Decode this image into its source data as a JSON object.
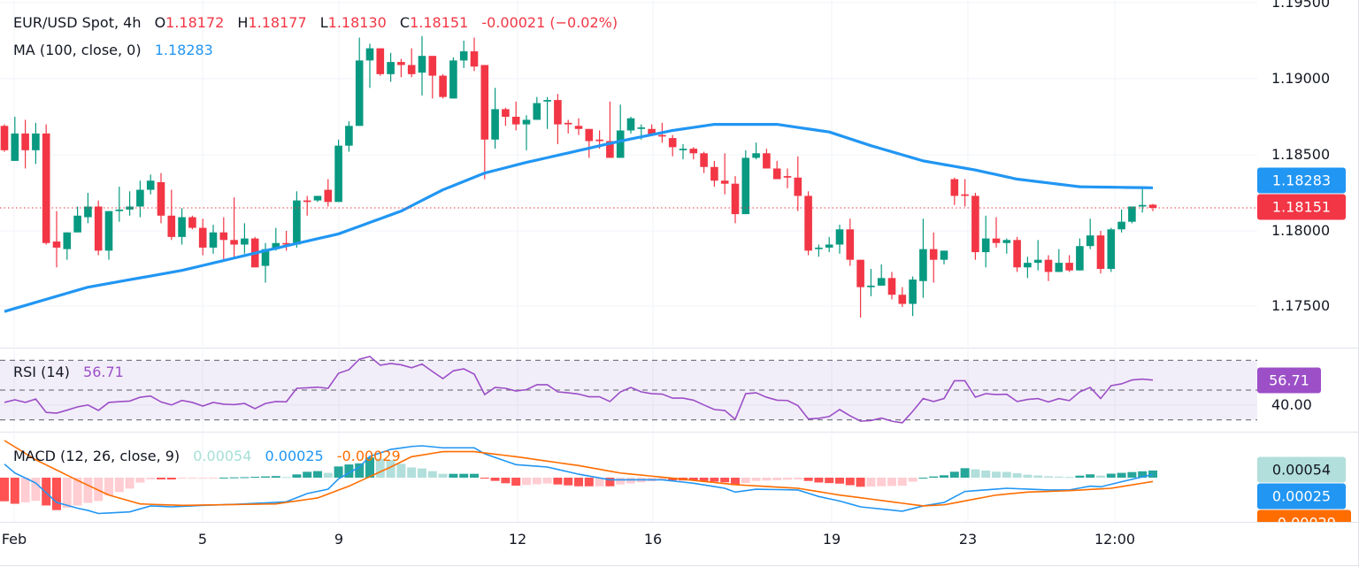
{
  "header": {
    "symbol": "EUR/USD Spot, 4h",
    "o_label": "O",
    "o_value": "1.18172",
    "h_label": "H",
    "h_value": "1.18177",
    "l_label": "L",
    "l_value": "1.18130",
    "c_label": "C",
    "c_value": "1.18151",
    "change": "-0.00021 (−0.02%)"
  },
  "ma_legend": {
    "label": "MA (100, close, 0)",
    "value": "1.18283"
  },
  "rsi_legend": {
    "label": "RSI (14)",
    "value": "56.71"
  },
  "macd_legend": {
    "label": "MACD (12, 26, close, 9)",
    "hist": "0.00054",
    "macd": "0.00025",
    "signal": "-0.00029"
  },
  "price_axis": [
    "1.19500",
    "1.19000",
    "1.18500",
    "1.18000",
    "1.17500"
  ],
  "price_badges": {
    "ma": "1.18283",
    "last": "1.18151"
  },
  "rsi_axis": {
    "badge": "56.71",
    "level_label": "40.00"
  },
  "macd_badges": {
    "hist": "0.00054",
    "macd": "0.00025",
    "signal": "-0.00029"
  },
  "time_axis": [
    "Feb",
    "5",
    "9",
    "12",
    "16",
    "19",
    "23",
    "12:00"
  ],
  "colors": {
    "up": "#089981",
    "down": "#f23645",
    "ma": "#2196f3",
    "rsi": "#9c4fc7",
    "macd": "#2196f3",
    "signal": "#ff6d00",
    "hist_up_strong": "#26a69a",
    "hist_up_weak": "#b2dfdb",
    "hist_down_strong": "#ff5252",
    "hist_down_weak": "#ffcdd2"
  },
  "chart_data": [
    {
      "type": "candlestick",
      "title": "EUR/USD Spot, 4h",
      "ylim": [
        1.1725,
        1.1952
      ],
      "grid": true,
      "ohlc": [
        [
          1.1869,
          1.187,
          1.1852,
          1.1853
        ],
        [
          1.1846,
          1.1875,
          1.1846,
          1.1864
        ],
        [
          1.1864,
          1.1873,
          1.1841,
          1.1853
        ],
        [
          1.1853,
          1.1871,
          1.1844,
          1.1864
        ],
        [
          1.1864,
          1.187,
          1.1791,
          1.1792
        ],
        [
          1.1793,
          1.1813,
          1.1776,
          1.1789
        ],
        [
          1.1788,
          1.1799,
          1.1781,
          1.1799
        ],
        [
          1.1799,
          1.1816,
          1.1799,
          1.181
        ],
        [
          1.1809,
          1.1825,
          1.1805,
          1.1816
        ],
        [
          1.1816,
          1.182,
          1.1784,
          1.1787
        ],
        [
          1.1787,
          1.1813,
          1.1781,
          1.1813
        ],
        [
          1.1813,
          1.1829,
          1.1806,
          1.1814
        ],
        [
          1.1814,
          1.1826,
          1.181,
          1.1816
        ],
        [
          1.1816,
          1.1833,
          1.1809,
          1.1827
        ],
        [
          1.1827,
          1.1837,
          1.1824,
          1.1833
        ],
        [
          1.1832,
          1.1838,
          1.1805,
          1.181
        ],
        [
          1.181,
          1.1827,
          1.1794,
          1.1796
        ],
        [
          1.1796,
          1.1815,
          1.1791,
          1.1809
        ],
        [
          1.1809,
          1.181,
          1.1801,
          1.1802
        ],
        [
          1.1802,
          1.1808,
          1.1784,
          1.1789
        ],
        [
          1.1789,
          1.1804,
          1.1785,
          1.1799
        ],
        [
          1.1799,
          1.1809,
          1.1781,
          1.1794
        ],
        [
          1.1794,
          1.1822,
          1.1782,
          1.1791
        ],
        [
          1.1791,
          1.1805,
          1.1785,
          1.1795
        ],
        [
          1.1795,
          1.1796,
          1.1776,
          1.1776
        ],
        [
          1.1777,
          1.1792,
          1.1766,
          1.1788
        ],
        [
          1.1788,
          1.1802,
          1.1787,
          1.1792
        ],
        [
          1.1792,
          1.18,
          1.1787,
          1.1791
        ],
        [
          1.1791,
          1.1826,
          1.1789,
          1.182
        ],
        [
          1.182,
          1.1823,
          1.181,
          1.1819
        ],
        [
          1.182,
          1.1823,
          1.1819,
          1.1823
        ],
        [
          1.1827,
          1.1834,
          1.1816,
          1.1819
        ],
        [
          1.1819,
          1.186,
          1.1819,
          1.1856
        ],
        [
          1.1856,
          1.1872,
          1.1852,
          1.1869
        ],
        [
          1.1869,
          1.1927,
          1.1869,
          1.1912
        ],
        [
          1.1912,
          1.1923,
          1.1894,
          1.192
        ],
        [
          1.192,
          1.192,
          1.1902,
          1.1903
        ],
        [
          1.1903,
          1.1917,
          1.1898,
          1.1911
        ],
        [
          1.1911,
          1.1913,
          1.1901,
          1.1909
        ],
        [
          1.1909,
          1.192,
          1.1901,
          1.1903
        ],
        [
          1.1904,
          1.1928,
          1.1889,
          1.1915
        ],
        [
          1.1915,
          1.1915,
          1.1887,
          1.1902
        ],
        [
          1.1902,
          1.1903,
          1.1887,
          1.1888
        ],
        [
          1.1887,
          1.1914,
          1.1887,
          1.1912
        ],
        [
          1.1912,
          1.1925,
          1.1907,
          1.1918
        ],
        [
          1.1918,
          1.1927,
          1.1905,
          1.1908
        ],
        [
          1.1909,
          1.1909,
          1.1834,
          1.186
        ],
        [
          1.186,
          1.1894,
          1.1854,
          1.188
        ],
        [
          1.188,
          1.1881,
          1.1869,
          1.1875
        ],
        [
          1.1875,
          1.1885,
          1.1866,
          1.187
        ],
        [
          1.187,
          1.1876,
          1.1853,
          1.1873
        ],
        [
          1.1873,
          1.1888,
          1.1873,
          1.1884
        ],
        [
          1.1885,
          1.1888,
          1.1867,
          1.1886
        ],
        [
          1.1886,
          1.189,
          1.1857,
          1.187
        ],
        [
          1.1871,
          1.1873,
          1.1864,
          1.187
        ],
        [
          1.1869,
          1.1874,
          1.1863,
          1.1867
        ],
        [
          1.1867,
          1.1867,
          1.1848,
          1.1859
        ],
        [
          1.186,
          1.1866,
          1.1854,
          1.1859
        ],
        [
          1.1859,
          1.1885,
          1.1848,
          1.1848
        ],
        [
          1.1848,
          1.1883,
          1.1848,
          1.1866
        ],
        [
          1.1866,
          1.1875,
          1.1864,
          1.1874
        ],
        [
          1.1867,
          1.187,
          1.186,
          1.1868
        ],
        [
          1.1867,
          1.187,
          1.1863,
          1.1863
        ],
        [
          1.1863,
          1.1871,
          1.1858,
          1.1862
        ],
        [
          1.1861,
          1.1863,
          1.1849,
          1.1855
        ],
        [
          1.1853,
          1.1857,
          1.1847,
          1.1854
        ],
        [
          1.1854,
          1.1855,
          1.1847,
          1.1851
        ],
        [
          1.1851,
          1.1852,
          1.1838,
          1.1842
        ],
        [
          1.1842,
          1.1846,
          1.1829,
          1.1833
        ],
        [
          1.1833,
          1.1851,
          1.1824,
          1.1831
        ],
        [
          1.1831,
          1.1836,
          1.1805,
          1.1811
        ],
        [
          1.1811,
          1.1853,
          1.1811,
          1.1848
        ],
        [
          1.1848,
          1.1858,
          1.1847,
          1.1851
        ],
        [
          1.1851,
          1.1854,
          1.1841,
          1.1841
        ],
        [
          1.1841,
          1.1846,
          1.1834,
          1.1834
        ],
        [
          1.1836,
          1.1841,
          1.1828,
          1.1835
        ],
        [
          1.1835,
          1.1849,
          1.1813,
          1.1823
        ],
        [
          1.1823,
          1.1826,
          1.1784,
          1.1787
        ],
        [
          1.1788,
          1.1791,
          1.1783,
          1.1789
        ],
        [
          1.1789,
          1.1796,
          1.1786,
          1.1791
        ],
        [
          1.1791,
          1.1804,
          1.1785,
          1.1801
        ],
        [
          1.1801,
          1.1808,
          1.1777,
          1.1781
        ],
        [
          1.1781,
          1.1781,
          1.1743,
          1.1763
        ],
        [
          1.1763,
          1.1775,
          1.1757,
          1.1764
        ],
        [
          1.1764,
          1.1778,
          1.1764,
          1.1769
        ],
        [
          1.1769,
          1.1773,
          1.1755,
          1.1758
        ],
        [
          1.1758,
          1.1763,
          1.175,
          1.1752
        ],
        [
          1.1752,
          1.177,
          1.1744,
          1.1768
        ],
        [
          1.1767,
          1.1808,
          1.1756,
          1.1788
        ],
        [
          1.1788,
          1.1799,
          1.1766,
          1.1781
        ],
        [
          1.1781,
          1.1787,
          1.1778,
          1.1787
        ],
        [
          1.1834,
          1.1835,
          1.1817,
          1.1823
        ],
        [
          1.1824,
          1.1834,
          1.1816,
          1.1823
        ],
        [
          1.1823,
          1.1825,
          1.1781,
          1.1786
        ],
        [
          1.1786,
          1.181,
          1.1776,
          1.1795
        ],
        [
          1.1795,
          1.1809,
          1.1789,
          1.1792
        ],
        [
          1.1792,
          1.1795,
          1.1785,
          1.1794
        ],
        [
          1.1794,
          1.1796,
          1.1773,
          1.1776
        ],
        [
          1.1776,
          1.1783,
          1.1769,
          1.1779
        ],
        [
          1.1779,
          1.1794,
          1.1774,
          1.1781
        ],
        [
          1.1781,
          1.1784,
          1.1767,
          1.1773
        ],
        [
          1.1773,
          1.1788,
          1.1773,
          1.1779
        ],
        [
          1.1779,
          1.1784,
          1.1773,
          1.1774
        ],
        [
          1.1774,
          1.1795,
          1.1774,
          1.179
        ],
        [
          1.179,
          1.1808,
          1.1788,
          1.1797
        ],
        [
          1.1797,
          1.18,
          1.1772,
          1.1775
        ],
        [
          1.1775,
          1.1802,
          1.1773,
          1.1801
        ],
        [
          1.1801,
          1.1814,
          1.1799,
          1.1806
        ],
        [
          1.1806,
          1.1816,
          1.1805,
          1.1816
        ],
        [
          1.1816,
          1.1828,
          1.1812,
          1.1817
        ],
        [
          1.18172,
          1.18177,
          1.1813,
          1.18151
        ]
      ],
      "ma_100": [
        [
          0,
          1.1747
        ],
        [
          8,
          1.1763
        ],
        [
          17,
          1.1774
        ],
        [
          25,
          1.1787
        ],
        [
          32,
          1.1798
        ],
        [
          38,
          1.1813
        ],
        [
          42,
          1.1827
        ],
        [
          46,
          1.1838
        ],
        [
          50,
          1.1845
        ],
        [
          59,
          1.1859
        ],
        [
          64,
          1.1866
        ],
        [
          68,
          1.187
        ],
        [
          74,
          1.187
        ],
        [
          79,
          1.1865
        ],
        [
          83,
          1.1856
        ],
        [
          88,
          1.1846
        ],
        [
          93,
          1.184
        ],
        [
          97,
          1.1834
        ],
        [
          103,
          1.1829
        ],
        [
          110,
          1.18283
        ]
      ],
      "last_price": 1.18151
    },
    {
      "type": "line",
      "title": "RSI (14)",
      "ylim": [
        25,
        75
      ],
      "levels": [
        70,
        50,
        30
      ],
      "values": [
        41.7,
        43.5,
        41.7,
        44,
        35,
        34.5,
        36.5,
        38.7,
        40,
        36.3,
        41.7,
        42.2,
        42.6,
        45.2,
        46,
        42,
        40,
        43,
        41.7,
        39.3,
        41.7,
        40.5,
        40.2,
        41,
        37.5,
        41,
        42.3,
        42.1,
        51.2,
        51.5,
        52,
        51.2,
        61.3,
        63.7,
        70.8,
        72.6,
        66.7,
        67.9,
        67,
        65,
        67.5,
        62.5,
        57.7,
        63,
        64.3,
        60.7,
        47,
        51.8,
        51.2,
        49.4,
        50.3,
        53.6,
        53.6,
        48.8,
        48.2,
        47.3,
        45.5,
        45.5,
        42.3,
        48.8,
        51.8,
        48.8,
        47.6,
        47.3,
        44.6,
        44.6,
        43.2,
        40,
        36.9,
        36.3,
        30.4,
        47.6,
        48.2,
        45.2,
        43.2,
        43,
        39.6,
        30.6,
        31,
        32.2,
        36.9,
        32.7,
        29.1,
        29.5,
        31.2,
        29.1,
        28,
        35.7,
        44.3,
        42.3,
        44.3,
        56.3,
        56.3,
        45.2,
        47.6,
        47,
        47.2,
        42.3,
        43.7,
        44.3,
        42,
        44.3,
        42.9,
        48.8,
        51.8,
        44.3,
        53,
        54.2,
        56.8,
        57.4,
        56.71
      ]
    },
    {
      "type": "line",
      "title": "MACD (12, 26, close, 9)",
      "macd": [
        [
          0,
          0.00102
        ],
        [
          1,
          0.00035
        ],
        [
          3,
          -0.0004
        ],
        [
          5,
          -0.00187
        ],
        [
          7,
          -0.0023
        ],
        [
          8,
          -0.00247
        ],
        [
          9,
          -0.0027
        ],
        [
          12,
          -0.00258
        ],
        [
          14,
          -0.00213
        ],
        [
          16,
          -0.0022
        ],
        [
          19,
          -0.00209
        ],
        [
          23,
          -0.00198
        ],
        [
          27,
          -0.00182
        ],
        [
          29,
          -0.0012
        ],
        [
          31,
          -0.00087
        ],
        [
          32,
          -9e-05
        ],
        [
          34,
          0.0008
        ],
        [
          35,
          0.0016
        ],
        [
          37,
          0.00213
        ],
        [
          39,
          0.00235
        ],
        [
          40,
          0.0024
        ],
        [
          42,
          0.00225
        ],
        [
          45,
          0.00225
        ],
        [
          46,
          0.0018
        ],
        [
          49,
          0.00098
        ],
        [
          52,
          0.0008
        ],
        [
          55,
          0.00026
        ],
        [
          58,
          -0.00016
        ],
        [
          63,
          -0.00016
        ],
        [
          66,
          -0.00042
        ],
        [
          69,
          -0.0008
        ],
        [
          70,
          -0.00109
        ],
        [
          72,
          -0.00087
        ],
        [
          76,
          -0.00093
        ],
        [
          78,
          -0.00142
        ],
        [
          80,
          -0.00176
        ],
        [
          82,
          -0.0022
        ],
        [
          86,
          -0.00253
        ],
        [
          88,
          -0.00213
        ],
        [
          90,
          -0.00187
        ],
        [
          92,
          -0.00104
        ],
        [
          96,
          -0.0008
        ],
        [
          100,
          -0.00093
        ],
        [
          102,
          -0.00093
        ],
        [
          104,
          -0.00064
        ],
        [
          105,
          -0.00069
        ],
        [
          107,
          -0.00031
        ],
        [
          110,
          0.00025
        ]
      ],
      "signal": [
        [
          0,
          0.0028
        ],
        [
          3,
          0.00135
        ],
        [
          7,
          -0.0002
        ],
        [
          10,
          -0.00131
        ],
        [
          13,
          -0.00198
        ],
        [
          17,
          -0.00209
        ],
        [
          26,
          -0.00198
        ],
        [
          30,
          -0.00153
        ],
        [
          33,
          -0.00064
        ],
        [
          37,
          0.0008
        ],
        [
          39,
          0.00158
        ],
        [
          42,
          0.00196
        ],
        [
          45,
          0.00196
        ],
        [
          49,
          0.00158
        ],
        [
          55,
          0.00091
        ],
        [
          59,
          0.00035
        ],
        [
          64,
          -4e-05
        ],
        [
          70,
          -0.00053
        ],
        [
          76,
          -0.0008
        ],
        [
          80,
          -0.00131
        ],
        [
          88,
          -0.00213
        ],
        [
          90,
          -0.00205
        ],
        [
          95,
          -0.00131
        ],
        [
          98,
          -0.00109
        ],
        [
          102,
          -0.00098
        ],
        [
          106,
          -0.0008
        ],
        [
          110,
          -0.00029
        ]
      ],
      "histogram_last": 0.00054
    }
  ]
}
